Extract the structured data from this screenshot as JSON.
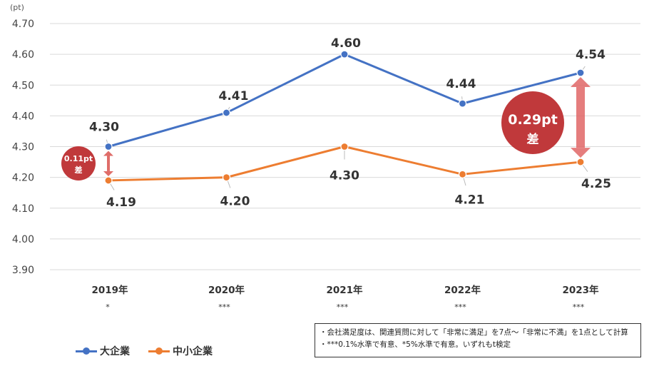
{
  "chart_data": {
    "type": "line",
    "unit_label": "(pt)",
    "categories": [
      "2019年",
      "2020年",
      "2021年",
      "2022年",
      "2023年"
    ],
    "significance": [
      "*",
      "***",
      "***",
      "***",
      "***"
    ],
    "ylim": [
      3.9,
      4.7
    ],
    "yticks": [
      "3.90",
      "4.00",
      "4.10",
      "4.20",
      "4.30",
      "4.40",
      "4.50",
      "4.60",
      "4.70"
    ],
    "grid": true,
    "legend_position": "bottom-left",
    "series": [
      {
        "name": "大企業",
        "values": [
          4.3,
          4.41,
          4.6,
          4.44,
          4.54
        ],
        "labels": [
          "4.30",
          "4.41",
          "4.60",
          "4.44",
          "4.54"
        ],
        "color": "#4472C4"
      },
      {
        "name": "中小企業",
        "values": [
          4.19,
          4.2,
          4.3,
          4.21,
          4.25
        ],
        "labels": [
          "4.19",
          "4.20",
          "4.30",
          "4.21",
          "4.25"
        ],
        "color": "#ED7D31"
      }
    ],
    "annotations": [
      {
        "category_index": 0,
        "line1": "0.11pt",
        "line2": "差",
        "color": "#C0393B"
      },
      {
        "category_index": 4,
        "line1": "0.29pt",
        "line2": "差",
        "color": "#C0393B"
      }
    ],
    "notes": [
      "・会社満足度は、関連質問に対して「非常に満足」を7点～「非常に不満」を1点として計算",
      "・***0.1%水準で有意、*5%水準で有意。いずれもt検定"
    ]
  }
}
